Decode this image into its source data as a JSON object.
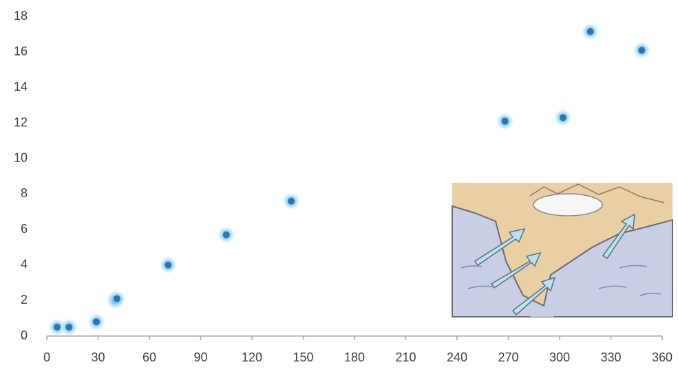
{
  "chart_data": {
    "type": "scatter",
    "x": [
      6,
      13,
      29,
      40,
      41,
      71,
      105,
      143,
      268,
      302,
      318,
      348
    ],
    "values": [
      0.5,
      0.5,
      0.8,
      2.0,
      2.1,
      4.0,
      5.7,
      7.6,
      12.1,
      12.3,
      17.15,
      16.1
    ],
    "color": "#2e75b6",
    "xlim": [
      0,
      360
    ],
    "xticks": [
      0,
      30,
      60,
      90,
      120,
      150,
      180,
      210,
      240,
      270,
      300,
      330,
      360
    ],
    "ylim": [
      0,
      18
    ],
    "yticks": [
      0,
      2,
      4,
      6,
      8,
      10,
      12,
      14,
      16,
      18
    ],
    "grid": false
  }
}
